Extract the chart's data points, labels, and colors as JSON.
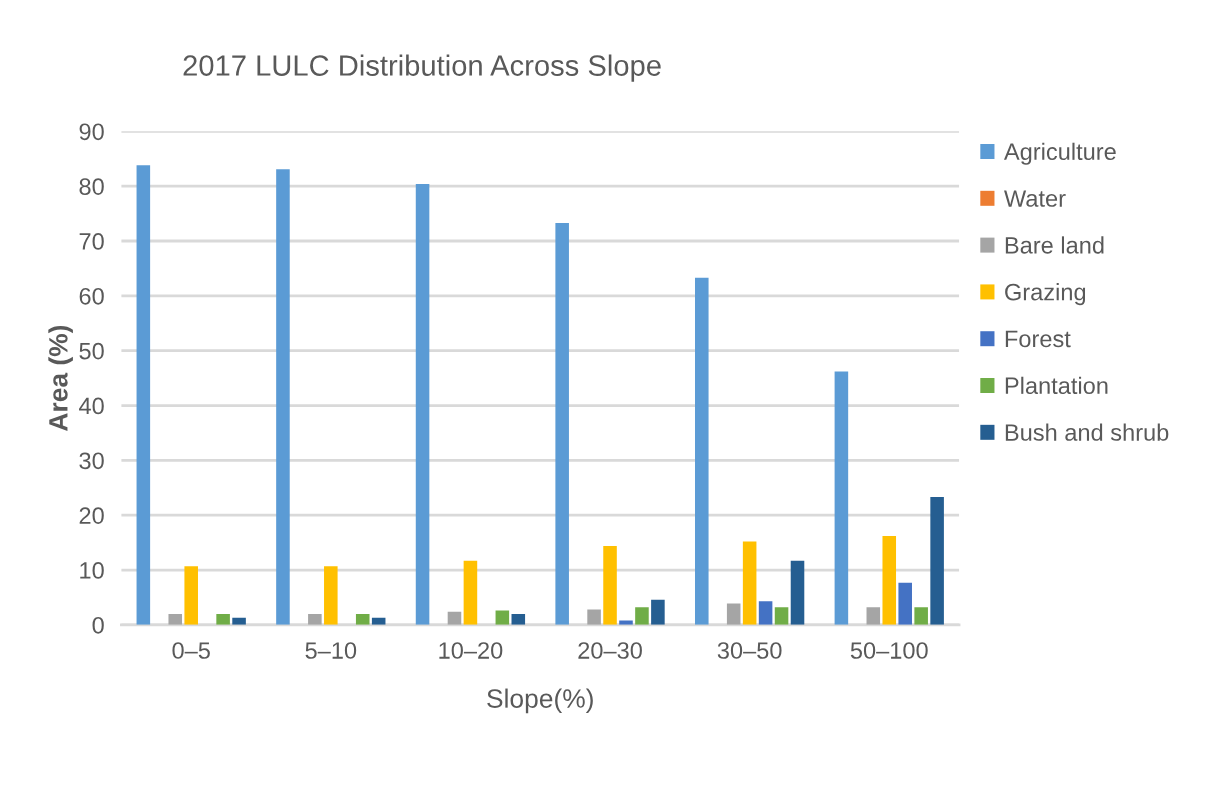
{
  "chart_data": {
    "type": "bar",
    "title": "2017 LULC Distribution Across Slope",
    "xlabel": "Slope(%)",
    "ylabel": "Area (%)",
    "categories": [
      "0–5",
      "5–10",
      "10–20",
      "20–30",
      "30–50",
      "50–100"
    ],
    "series": [
      {
        "name": "Agriculture",
        "color": "#5b9bd5",
        "values": [
          83.8,
          83.1,
          80.4,
          73.3,
          63.3,
          46.2
        ]
      },
      {
        "name": "Water",
        "color": "#ed7d31",
        "values": [
          0,
          0,
          0,
          0,
          0,
          0
        ]
      },
      {
        "name": "Bare land",
        "color": "#a5a5a5",
        "values": [
          2.0,
          2.0,
          2.4,
          2.8,
          3.9,
          3.2
        ]
      },
      {
        "name": "Grazing",
        "color": "#ffc000",
        "values": [
          10.7,
          10.7,
          11.7,
          14.4,
          15.2,
          16.2
        ]
      },
      {
        "name": "Forest",
        "color": "#4472c4",
        "values": [
          0,
          0,
          0,
          0.8,
          4.3,
          7.7
        ]
      },
      {
        "name": "Plantation",
        "color": "#70ad47",
        "values": [
          2.0,
          2.0,
          2.6,
          3.2,
          3.2,
          3.2
        ]
      },
      {
        "name": "Bush and shrub",
        "color": "#255e91",
        "values": [
          1.3,
          1.3,
          2.0,
          4.6,
          11.7,
          23.3
        ]
      }
    ],
    "ylim": [
      0,
      90
    ],
    "yticks": [
      0,
      10,
      20,
      30,
      40,
      50,
      60,
      70,
      80,
      90
    ],
    "grid": "y",
    "legend": "right"
  }
}
